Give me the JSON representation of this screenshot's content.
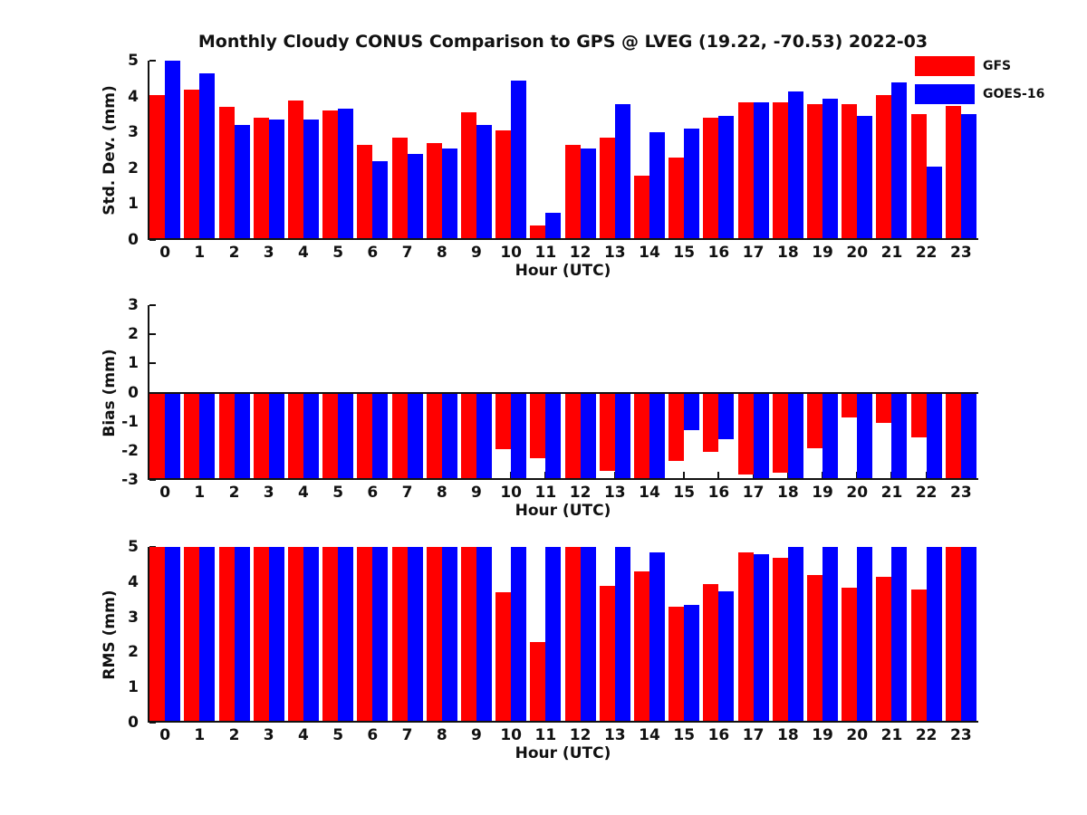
{
  "title": "Monthly Cloudy CONUS Comparison to GPS @ LVEG (19.22, -70.53) 2022-03",
  "colors": {
    "gfs": "#ff0000",
    "goes16": "#0000ff",
    "axis": "#111111",
    "background": "#ffffff"
  },
  "legend": {
    "items": [
      {
        "label": "GFS",
        "color": "#ff0000",
        "swatch": "red-rect"
      },
      {
        "label": "GOES-16",
        "color": "#0000ff",
        "swatch": "blue-rect"
      }
    ]
  },
  "chart_data": [
    {
      "type": "bar",
      "panel": "std-dev",
      "ylabel": "Std. Dev. (mm)",
      "xlabel": "Hour (UTC)",
      "ylim": [
        0,
        5
      ],
      "yticks": [
        0,
        1,
        2,
        3,
        4,
        5
      ],
      "grid": false,
      "legend_position": "top-right",
      "categories": [
        "0",
        "1",
        "2",
        "3",
        "4",
        "5",
        "6",
        "7",
        "8",
        "9",
        "10",
        "11",
        "12",
        "13",
        "14",
        "15",
        "16",
        "17",
        "18",
        "19",
        "20",
        "21",
        "22",
        "23"
      ],
      "series": [
        {
          "name": "GFS",
          "color": "#ff0000",
          "values": [
            4.05,
            4.2,
            3.7,
            3.4,
            3.9,
            3.6,
            2.65,
            2.85,
            2.7,
            3.55,
            3.05,
            0.4,
            2.65,
            2.85,
            1.8,
            2.3,
            3.4,
            3.85,
            3.85,
            3.8,
            3.8,
            4.05,
            3.5,
            3.85
          ]
        },
        {
          "name": "GOES-16",
          "color": "#0000ff",
          "values": [
            5.0,
            4.65,
            3.2,
            3.35,
            3.35,
            3.65,
            2.2,
            2.4,
            2.55,
            3.2,
            4.45,
            0.75,
            2.55,
            3.8,
            3.0,
            3.1,
            3.45,
            3.85,
            4.15,
            3.95,
            3.45,
            4.4,
            2.05,
            3.5
          ]
        }
      ]
    },
    {
      "type": "bar",
      "panel": "bias",
      "ylabel": "Bias (mm)",
      "xlabel": "Hour (UTC)",
      "ylim": [
        -3,
        3
      ],
      "yticks": [
        3,
        2,
        1,
        0,
        -1,
        -2,
        -3
      ],
      "grid": false,
      "categories": [
        "0",
        "1",
        "2",
        "3",
        "4",
        "5",
        "6",
        "7",
        "8",
        "9",
        "10",
        "11",
        "12",
        "13",
        "14",
        "15",
        "16",
        "17",
        "18",
        "19",
        "20",
        "21",
        "22",
        "23"
      ],
      "series": [
        {
          "name": "GFS",
          "color": "#ff0000",
          "values": [
            -3,
            -3,
            -3,
            -3,
            -3,
            -3,
            -3,
            -3,
            -3,
            -3,
            -1.95,
            -2.25,
            -3,
            -2.7,
            -3,
            -2.35,
            -2.05,
            -2.8,
            -2.75,
            -1.9,
            -0.85,
            -1.05,
            -1.55,
            -3
          ]
        },
        {
          "name": "GOES-16",
          "color": "#0000ff",
          "values": [
            -3,
            -3,
            -3,
            -3,
            -3,
            -3,
            -3,
            -3,
            -3,
            -3,
            -3,
            -3,
            -3,
            -3,
            -3,
            -1.3,
            -1.6,
            -3,
            -3,
            -3,
            -3,
            -3,
            -3,
            -3
          ]
        }
      ]
    },
    {
      "type": "bar",
      "panel": "rms",
      "ylabel": "RMS (mm)",
      "xlabel": "Hour (UTC)",
      "ylim": [
        0,
        5
      ],
      "yticks": [
        0,
        1,
        2,
        3,
        4,
        5
      ],
      "grid": false,
      "categories": [
        "0",
        "1",
        "2",
        "3",
        "4",
        "5",
        "6",
        "7",
        "8",
        "9",
        "10",
        "11",
        "12",
        "13",
        "14",
        "15",
        "16",
        "17",
        "18",
        "19",
        "20",
        "21",
        "22",
        "23"
      ],
      "series": [
        {
          "name": "GFS",
          "color": "#ff0000",
          "values": [
            5,
            5,
            5,
            5,
            5,
            5,
            5,
            5,
            5,
            5,
            3.7,
            2.3,
            5,
            3.9,
            4.3,
            3.3,
            3.95,
            4.85,
            4.7,
            4.2,
            3.85,
            4.15,
            3.8,
            5
          ]
        },
        {
          "name": "GOES-16",
          "color": "#0000ff",
          "values": [
            5,
            5,
            5,
            5,
            5,
            5,
            5,
            5,
            5,
            5,
            5,
            5,
            5,
            5,
            4.85,
            3.35,
            3.75,
            4.8,
            5,
            5,
            5,
            5,
            5,
            5
          ]
        }
      ]
    }
  ]
}
